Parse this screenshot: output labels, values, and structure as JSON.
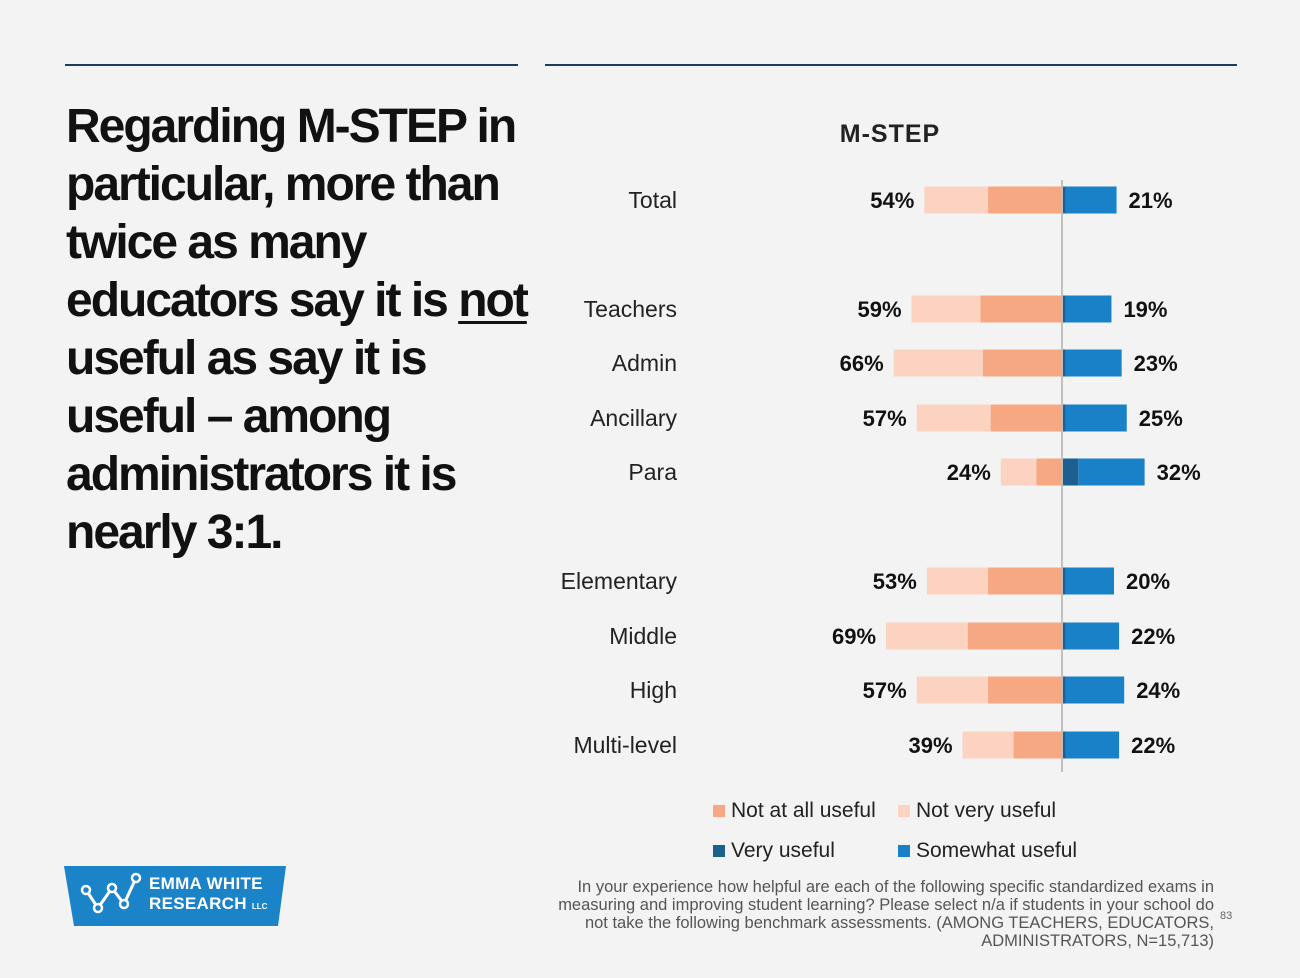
{
  "headline": {
    "part1": "Regarding M-STEP in particular, more than twice as many educators say it is ",
    "underlined": "not",
    "part2": " useful as say it is useful – among administrators it is nearly 3:1."
  },
  "chart_data": {
    "type": "bar",
    "title": "M-STEP",
    "categories": [
      "Total",
      "Teachers",
      "Admin",
      "Ancillary",
      "Para",
      "Elementary",
      "Middle",
      "High",
      "Multi-level"
    ],
    "series": [
      {
        "name": "Not at all useful",
        "color": "#f5a882",
        "values": [
          29,
          32,
          31,
          28,
          10,
          29,
          37,
          29,
          19
        ]
      },
      {
        "name": "Not very useful",
        "color": "#fbd3c0",
        "values": [
          25,
          27,
          35,
          29,
          14,
          24,
          32,
          28,
          20
        ]
      },
      {
        "name": "Very useful",
        "color": "#1d5f8f",
        "values": [
          1,
          1,
          1,
          1,
          6,
          1,
          1,
          1,
          1
        ]
      },
      {
        "name": "Somewhat useful",
        "color": "#1881c8",
        "values": [
          20,
          18,
          22,
          24,
          26,
          19,
          21,
          23,
          21
        ]
      }
    ],
    "not_useful_labels": [
      "54%",
      "59%",
      "66%",
      "57%",
      "24%",
      "53%",
      "69%",
      "57%",
      "39%"
    ],
    "useful_labels": [
      "21%",
      "19%",
      "23%",
      "25%",
      "32%",
      "20%",
      "22%",
      "24%",
      "22%"
    ],
    "legend_position": "bottom",
    "grid": false
  },
  "legend": {
    "not_at_all": "Not at all useful",
    "not_very": "Not very useful",
    "very": "Very useful",
    "somewhat": "Somewhat useful"
  },
  "logo": {
    "line1": "EMMA WHITE",
    "line2": "RESEARCH",
    "suffix": "LLC"
  },
  "footnote": "In your experience how helpful are each of the following specific standardized exams in measuring and improving student learning? Please select n/a if students in your school do not take the following benchmark assessments. (AMONG TEACHERS, EDUCATORS, ADMINISTRATORS, N=15,713)",
  "page_number": "83",
  "colors": {
    "rule": "#1f3a5f",
    "logo_bg": "#1b84c9"
  }
}
